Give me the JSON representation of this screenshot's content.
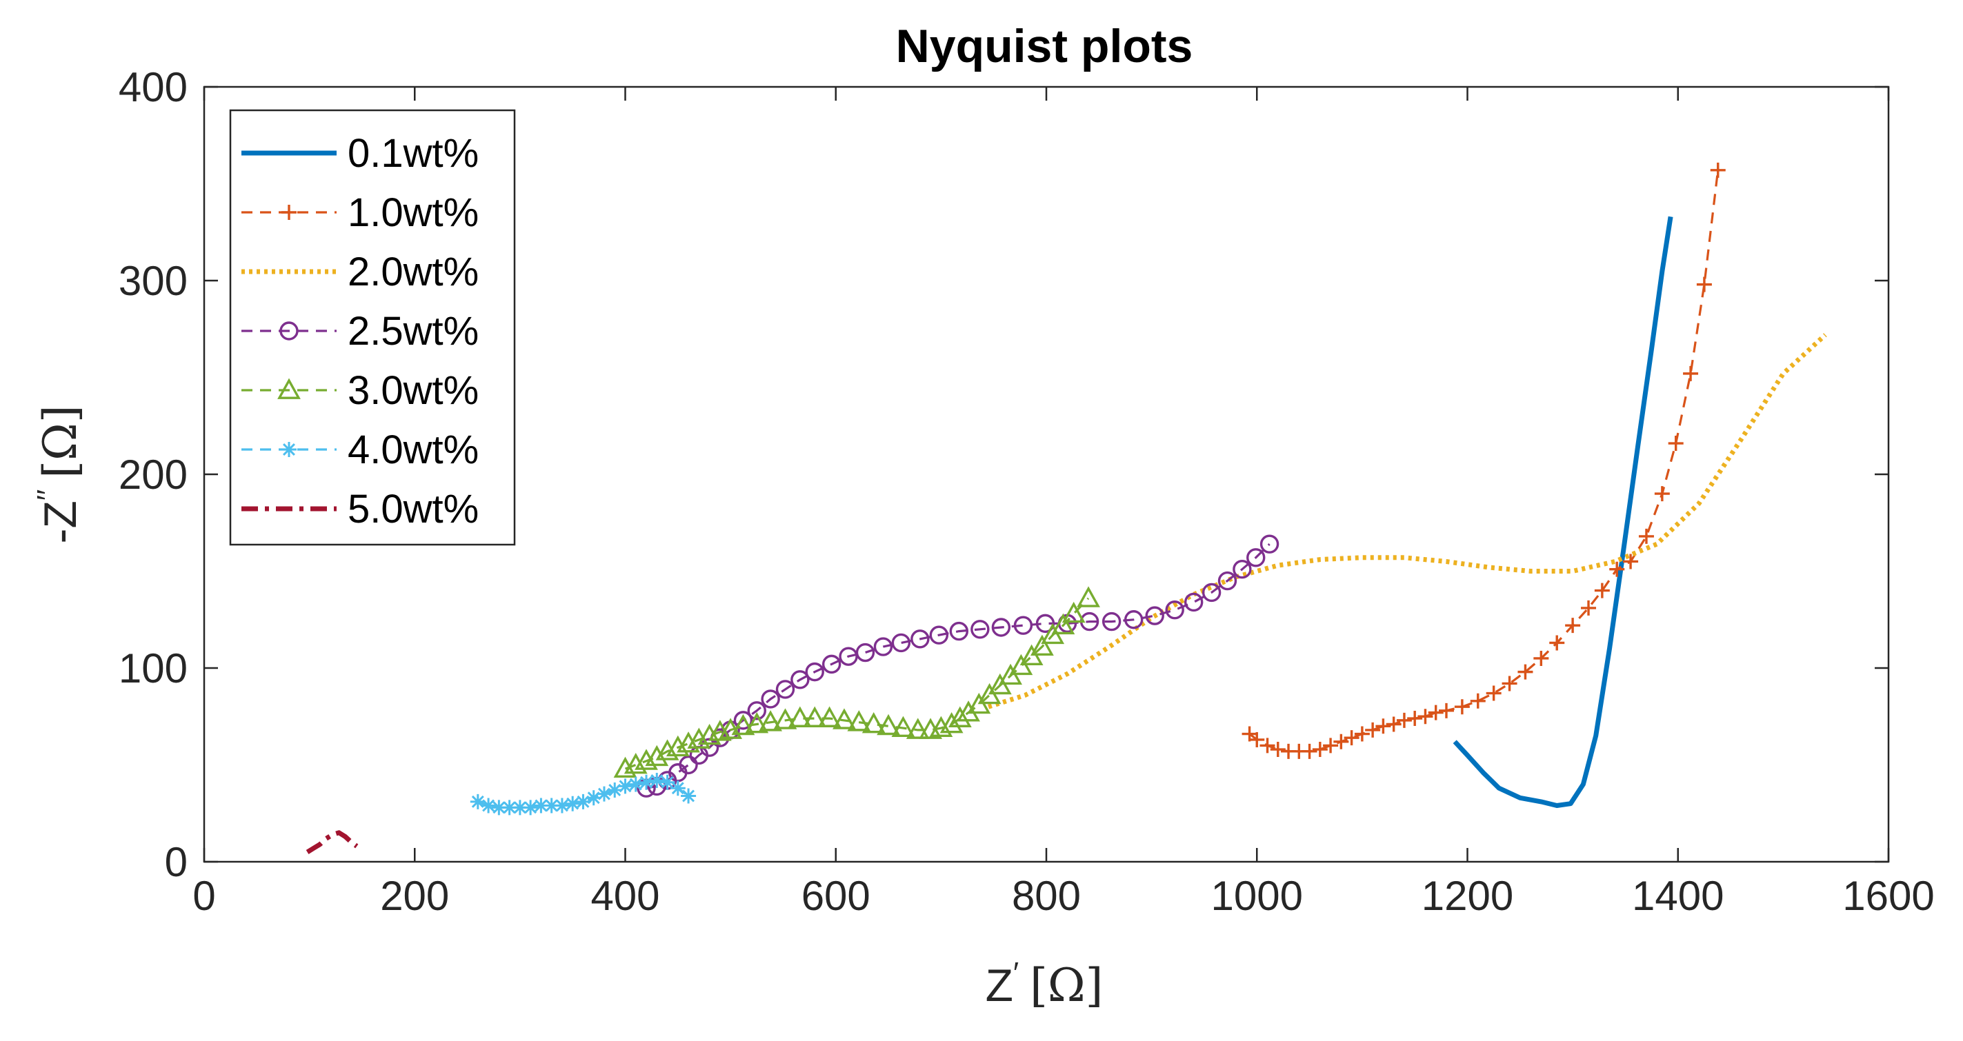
{
  "chart_data": {
    "type": "line",
    "title": "Nyquist plots",
    "xlabel": {
      "base": "Z",
      "prime": "′",
      "unit": "[Ω]"
    },
    "ylabel": {
      "base": "-Z",
      "prime": "′′",
      "unit": "[Ω]"
    },
    "xlim": [
      0,
      1600
    ],
    "ylim": [
      0,
      400
    ],
    "xticks": [
      "0",
      "200",
      "400",
      "600",
      "800",
      "1000",
      "1200",
      "1400",
      "1600"
    ],
    "yticks": [
      "0",
      "100",
      "200",
      "300",
      "400"
    ],
    "grid": false,
    "legend_location": "top-left",
    "series": [
      {
        "name": "0.1wt%",
        "color": "#0072BD",
        "line": "solid",
        "marker": "none",
        "points": [
          [
            1188,
            62
          ],
          [
            1200,
            55
          ],
          [
            1215,
            46
          ],
          [
            1230,
            38
          ],
          [
            1250,
            33
          ],
          [
            1270,
            31
          ],
          [
            1285,
            29
          ],
          [
            1298,
            30
          ],
          [
            1310,
            40
          ],
          [
            1322,
            65
          ],
          [
            1335,
            110
          ],
          [
            1348,
            160
          ],
          [
            1362,
            215
          ],
          [
            1375,
            265
          ],
          [
            1385,
            305
          ],
          [
            1393,
            333
          ]
        ]
      },
      {
        "name": "1.0wt%",
        "color": "#D95319",
        "line": "dashed",
        "marker": "plus",
        "points": [
          [
            993,
            66
          ],
          [
            1000,
            63
          ],
          [
            1010,
            60
          ],
          [
            1020,
            58
          ],
          [
            1030,
            57
          ],
          [
            1040,
            57
          ],
          [
            1050,
            57
          ],
          [
            1060,
            58
          ],
          [
            1070,
            60
          ],
          [
            1080,
            62
          ],
          [
            1090,
            64
          ],
          [
            1100,
            66
          ],
          [
            1110,
            68
          ],
          [
            1120,
            70
          ],
          [
            1130,
            71
          ],
          [
            1140,
            73
          ],
          [
            1150,
            74
          ],
          [
            1160,
            75
          ],
          [
            1170,
            77
          ],
          [
            1180,
            78
          ],
          [
            1195,
            80
          ],
          [
            1210,
            83
          ],
          [
            1225,
            87
          ],
          [
            1240,
            92
          ],
          [
            1255,
            98
          ],
          [
            1270,
            105
          ],
          [
            1285,
            113
          ],
          [
            1300,
            122
          ],
          [
            1315,
            131
          ],
          [
            1328,
            140
          ],
          [
            1342,
            151
          ],
          [
            1355,
            155
          ],
          [
            1370,
            168
          ],
          [
            1385,
            190
          ],
          [
            1398,
            216
          ],
          [
            1412,
            252
          ],
          [
            1425,
            298
          ],
          [
            1438,
            357
          ]
        ]
      },
      {
        "name": "2.0wt%",
        "color": "#EDB120",
        "line": "dotted",
        "marker": "none",
        "points": [
          [
            745,
            80
          ],
          [
            780,
            86
          ],
          [
            820,
            97
          ],
          [
            860,
            111
          ],
          [
            900,
            126
          ],
          [
            940,
            138
          ],
          [
            980,
            147
          ],
          [
            1020,
            153
          ],
          [
            1060,
            156
          ],
          [
            1100,
            157
          ],
          [
            1140,
            157
          ],
          [
            1180,
            155
          ],
          [
            1220,
            152
          ],
          [
            1260,
            150
          ],
          [
            1300,
            150
          ],
          [
            1340,
            155
          ],
          [
            1380,
            164
          ],
          [
            1420,
            185
          ],
          [
            1460,
            218
          ],
          [
            1500,
            252
          ],
          [
            1540,
            272
          ]
        ]
      },
      {
        "name": "2.5wt%",
        "color": "#7E2F8E",
        "line": "dashed",
        "marker": "circle",
        "points": [
          [
            420,
            38
          ],
          [
            430,
            39
          ],
          [
            440,
            42
          ],
          [
            450,
            46
          ],
          [
            460,
            50
          ],
          [
            470,
            55
          ],
          [
            480,
            59
          ],
          [
            490,
            64
          ],
          [
            500,
            68
          ],
          [
            512,
            73
          ],
          [
            525,
            78
          ],
          [
            538,
            84
          ],
          [
            552,
            89
          ],
          [
            566,
            94
          ],
          [
            580,
            98
          ],
          [
            596,
            102
          ],
          [
            612,
            106
          ],
          [
            628,
            108
          ],
          [
            645,
            111
          ],
          [
            662,
            113
          ],
          [
            680,
            115
          ],
          [
            698,
            117
          ],
          [
            717,
            119
          ],
          [
            737,
            120
          ],
          [
            757,
            121
          ],
          [
            778,
            122
          ],
          [
            799,
            123
          ],
          [
            820,
            123
          ],
          [
            841,
            124
          ],
          [
            862,
            124
          ],
          [
            883,
            125
          ],
          [
            903,
            127
          ],
          [
            922,
            130
          ],
          [
            940,
            134
          ],
          [
            957,
            139
          ],
          [
            972,
            145
          ],
          [
            986,
            151
          ],
          [
            999,
            157
          ],
          [
            1012,
            164
          ]
        ]
      },
      {
        "name": "3.0wt%",
        "color": "#77AC30",
        "line": "dashed",
        "marker": "triangle",
        "points": [
          [
            400,
            48
          ],
          [
            410,
            50
          ],
          [
            420,
            52
          ],
          [
            430,
            54
          ],
          [
            440,
            57
          ],
          [
            450,
            59
          ],
          [
            460,
            61
          ],
          [
            470,
            63
          ],
          [
            480,
            65
          ],
          [
            490,
            67
          ],
          [
            500,
            68
          ],
          [
            512,
            70
          ],
          [
            525,
            71
          ],
          [
            538,
            72
          ],
          [
            552,
            73
          ],
          [
            566,
            74
          ],
          [
            580,
            74
          ],
          [
            594,
            74
          ],
          [
            608,
            73
          ],
          [
            622,
            72
          ],
          [
            636,
            71
          ],
          [
            650,
            70
          ],
          [
            664,
            69
          ],
          [
            678,
            68
          ],
          [
            690,
            68
          ],
          [
            700,
            69
          ],
          [
            710,
            71
          ],
          [
            718,
            74
          ],
          [
            726,
            77
          ],
          [
            736,
            81
          ],
          [
            746,
            86
          ],
          [
            756,
            91
          ],
          [
            766,
            96
          ],
          [
            776,
            101
          ],
          [
            786,
            106
          ],
          [
            796,
            111
          ],
          [
            806,
            117
          ],
          [
            816,
            122
          ],
          [
            826,
            128
          ],
          [
            840,
            136
          ]
        ]
      },
      {
        "name": "4.0wt%",
        "color": "#4DBEEE",
        "line": "dashed",
        "marker": "star",
        "points": [
          [
            260,
            31
          ],
          [
            270,
            29
          ],
          [
            280,
            28
          ],
          [
            290,
            28
          ],
          [
            300,
            28
          ],
          [
            310,
            28
          ],
          [
            320,
            29
          ],
          [
            330,
            29
          ],
          [
            340,
            29
          ],
          [
            350,
            30
          ],
          [
            360,
            31
          ],
          [
            370,
            33
          ],
          [
            380,
            35
          ],
          [
            390,
            37
          ],
          [
            400,
            39
          ],
          [
            410,
            40
          ],
          [
            420,
            41
          ],
          [
            430,
            42
          ],
          [
            440,
            41
          ],
          [
            450,
            38
          ],
          [
            460,
            34
          ]
        ]
      },
      {
        "name": "5.0wt%",
        "color": "#A2142F",
        "line": "dashdot",
        "marker": "none",
        "points": [
          [
            98,
            5
          ],
          [
            104,
            7
          ],
          [
            110,
            9
          ],
          [
            116,
            12
          ],
          [
            122,
            14
          ],
          [
            128,
            15
          ],
          [
            134,
            13
          ],
          [
            140,
            10
          ],
          [
            145,
            8
          ]
        ]
      }
    ]
  }
}
